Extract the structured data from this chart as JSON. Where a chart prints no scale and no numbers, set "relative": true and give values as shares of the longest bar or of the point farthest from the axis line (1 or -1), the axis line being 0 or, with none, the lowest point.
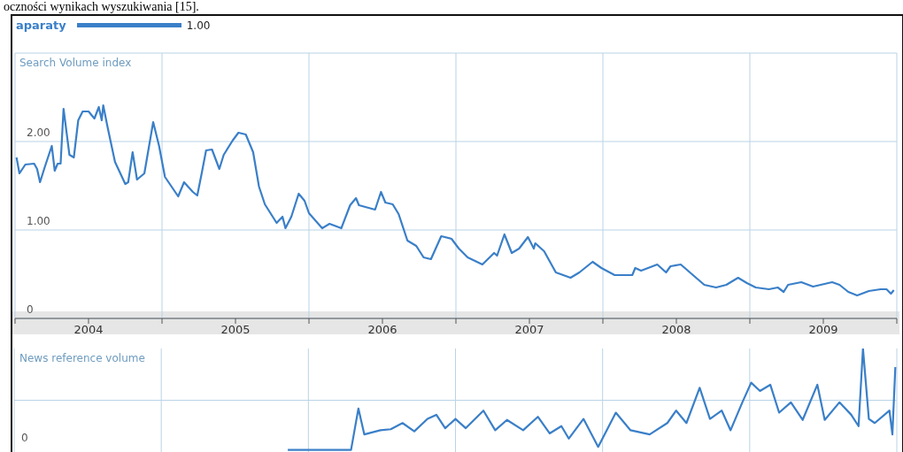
{
  "chart_data": [
    {
      "type": "line",
      "ylabel": "Search Volume index",
      "annotations": [
        "oczności wynikach wyszukiwania [15].",
        "1.00"
      ],
      "legend": "top left",
      "grid": true,
      "marker": "none",
      "xlim": [
        2004,
        2010
      ],
      "xticks": [
        {
          "value": 2004,
          "label": null
        },
        {
          "value": 2004.5,
          "label": "2004"
        },
        {
          "value": 2005,
          "label": null
        },
        {
          "value": 2005.5,
          "label": "2005"
        },
        {
          "value": 2006,
          "label": null
        },
        {
          "value": 2006.5,
          "label": "2006"
        },
        {
          "value": 2007,
          "label": null
        },
        {
          "value": 2007.5,
          "label": "2007"
        },
        {
          "value": 2008,
          "label": null
        },
        {
          "value": 2008.5,
          "label": "2008"
        },
        {
          "value": 2009,
          "label": null
        },
        {
          "value": 2009.5,
          "label": "2009"
        },
        {
          "value": 2010,
          "label": null
        }
      ],
      "ylim": [
        0,
        3
      ],
      "yticks": [
        0,
        {
          "value": 1,
          "label": "1.00"
        },
        {
          "value": 2,
          "label": "2.00"
        },
        {
          "value": 3,
          "label": null
        }
      ],
      "series": [
        {
          "name": "aparaty",
          "color": "#3a7fc8",
          "x": [
            2004.01,
            2004.03,
            2004.07,
            2004.13,
            2004.15,
            2004.17,
            2004.2,
            2004.25,
            2004.27,
            2004.29,
            2004.31,
            2004.33,
            2004.37,
            2004.4,
            2004.43,
            2004.46,
            2004.5,
            2004.54,
            2004.57,
            2004.59,
            2004.6,
            2004.63,
            2004.68,
            2004.75,
            2004.77,
            2004.8,
            2004.83,
            2004.88,
            2004.94,
            2004.98,
            2005.02,
            2005.11,
            2005.15,
            2005.21,
            2005.24,
            2005.27,
            2005.3,
            2005.34,
            2005.39,
            2005.42,
            2005.48,
            2005.52,
            2005.57,
            2005.62,
            2005.66,
            2005.7,
            2005.78,
            2005.82,
            2005.84,
            2005.88,
            2005.93,
            2005.97,
            2006.0,
            2006.09,
            2006.14,
            2006.22,
            2006.28,
            2006.32,
            2006.34,
            2006.45,
            2006.49,
            2006.52,
            2006.57,
            2006.61,
            2006.67,
            2006.73,
            2006.78,
            2006.83,
            2006.9,
            2006.97,
            2007.02,
            2007.08,
            2007.18,
            2007.26,
            2007.28,
            2007.33,
            2007.38,
            2007.43,
            2007.49,
            2007.53,
            2007.54,
            2007.6,
            2007.68,
            2007.78,
            2007.84,
            2007.93,
            2007.99,
            2008.08,
            2008.2,
            2008.22,
            2008.26,
            2008.37,
            2008.43,
            2008.46,
            2008.53,
            2008.62,
            2008.69,
            2008.77,
            2008.84,
            2008.92,
            2008.98,
            2009.04,
            2009.13,
            2009.19,
            2009.23,
            2009.26,
            2009.35,
            2009.43,
            2009.56,
            2009.61,
            2009.67,
            2009.73,
            2009.81,
            2009.89,
            2009.93,
            2009.96,
            2009.98
          ],
          "values": [
            1.82,
            1.64,
            1.74,
            1.75,
            1.69,
            1.54,
            1.7,
            1.95,
            1.67,
            1.75,
            1.75,
            2.37,
            1.85,
            1.82,
            2.24,
            2.34,
            2.34,
            2.26,
            2.39,
            2.24,
            2.41,
            2.16,
            1.77,
            1.52,
            1.54,
            1.88,
            1.57,
            1.64,
            2.22,
            1.95,
            1.6,
            1.38,
            1.54,
            1.43,
            1.39,
            1.64,
            1.9,
            1.91,
            1.69,
            1.85,
            2.01,
            2.1,
            2.08,
            1.88,
            1.49,
            1.29,
            1.08,
            1.15,
            1.02,
            1.15,
            1.41,
            1.33,
            1.19,
            1.02,
            1.07,
            1.02,
            1.28,
            1.36,
            1.28,
            1.23,
            1.43,
            1.31,
            1.29,
            1.18,
            0.88,
            0.82,
            0.69,
            0.67,
            0.93,
            0.9,
            0.79,
            0.69,
            0.61,
            0.74,
            0.71,
            0.95,
            0.74,
            0.79,
            0.92,
            0.79,
            0.85,
            0.76,
            0.52,
            0.46,
            0.52,
            0.64,
            0.57,
            0.49,
            0.49,
            0.57,
            0.54,
            0.61,
            0.52,
            0.59,
            0.61,
            0.48,
            0.38,
            0.35,
            0.38,
            0.46,
            0.4,
            0.35,
            0.33,
            0.35,
            0.3,
            0.38,
            0.41,
            0.36,
            0.41,
            0.38,
            0.3,
            0.26,
            0.31,
            0.33,
            0.33,
            0.28,
            0.32
          ]
        }
      ]
    },
    {
      "type": "line",
      "ylabel": "News reference volume",
      "annotations": [
        "0"
      ],
      "relative": true,
      "grid": true,
      "marker": "none",
      "tick_labels": false,
      "xlim": [
        2004,
        2010
      ],
      "xticks": [
        {
          "value": 2004,
          "label": null
        },
        {
          "value": 2005,
          "label": null
        },
        {
          "value": 2006,
          "label": null
        },
        {
          "value": 2007,
          "label": null
        },
        {
          "value": 2008,
          "label": null
        },
        {
          "value": 2009,
          "label": null
        },
        {
          "value": 2010,
          "label": null
        }
      ],
      "series": [
        {
          "color": "#3a7fc8",
          "x": [
            2005.86,
            2006.29,
            2006.34,
            2006.38,
            2006.49,
            2006.56,
            2006.64,
            2006.72,
            2006.81,
            2006.87,
            2006.93,
            2007.0,
            2007.07,
            2007.19,
            2007.27,
            2007.35,
            2007.46,
            2007.56,
            2007.64,
            2007.72,
            2007.77,
            2007.87,
            2007.97,
            2008.09,
            2008.19,
            2008.32,
            2008.44,
            2008.5,
            2008.57,
            2008.66,
            2008.73,
            2008.81,
            2008.87,
            2008.95,
            2009.01,
            2009.07,
            2009.14,
            2009.2,
            2009.28,
            2009.36,
            2009.46,
            2009.51,
            2009.61,
            2009.69,
            2009.74,
            2009.77,
            2009.81,
            2009.85,
            2009.95,
            2009.97,
            2009.99
          ],
          "values": [
            0.02,
            0.02,
            0.42,
            0.17,
            0.21,
            0.22,
            0.28,
            0.2,
            0.32,
            0.36,
            0.23,
            0.32,
            0.23,
            0.4,
            0.21,
            0.31,
            0.21,
            0.34,
            0.18,
            0.25,
            0.13,
            0.32,
            0.05,
            0.38,
            0.21,
            0.17,
            0.28,
            0.4,
            0.28,
            0.62,
            0.32,
            0.4,
            0.21,
            0.48,
            0.67,
            0.59,
            0.65,
            0.38,
            0.48,
            0.31,
            0.65,
            0.31,
            0.48,
            0.36,
            0.25,
            1,
            0.32,
            0.28,
            0.4,
            0.17,
            0.82
          ]
        }
      ]
    }
  ]
}
